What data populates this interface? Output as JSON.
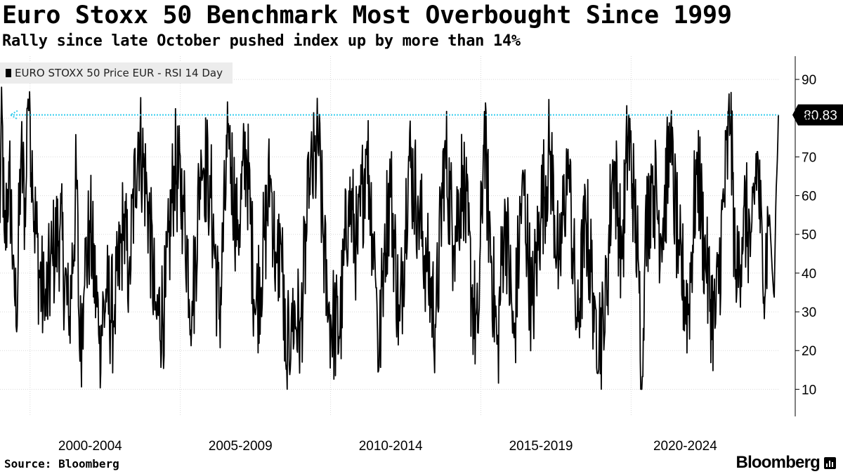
{
  "title": "Euro Stoxx 50 Benchmark Most Overbought Since 1999",
  "subtitle": "Rally since late October pushed index up by more than 14%",
  "legend": {
    "label": "EURO STOXX 50 Price EUR - RSI 14 Day"
  },
  "source": "Source: Bloomberg",
  "brand": "Bloomberg",
  "colors": {
    "line": "#000000",
    "reference": "#33ccee",
    "label_bg": "#000000",
    "grid": "#d9d9d9"
  },
  "chart_data": {
    "type": "line",
    "title": "Euro Stoxx 50 Benchmark Most Overbought Since 1999",
    "subtitle": "Rally since late October pushed index up by more than 14%",
    "xlabel": "",
    "ylabel": "",
    "x_range": [
      1999.0,
      2024.9
    ],
    "ylim": [
      3,
      96
    ],
    "y_ticks": [
      10,
      20,
      30,
      40,
      50,
      60,
      70,
      80,
      90
    ],
    "y_tick_labels": [
      "10",
      "20",
      "30",
      "40",
      "50",
      "60",
      "70",
      "80",
      "90"
    ],
    "x_tick_labels": [
      {
        "label": "2000-2004",
        "center": 2002.0
      },
      {
        "label": "2005-2009",
        "center": 2007.0
      },
      {
        "label": "2010-2014",
        "center": 2012.0
      },
      {
        "label": "2015-2019",
        "center": 2017.0
      },
      {
        "label": "2020-2024",
        "center": 2021.8
      }
    ],
    "x_boundaries": [
      2000,
      2005,
      2010,
      2015,
      2020
    ],
    "grid": true,
    "legend_position": "top-left",
    "series": [
      {
        "name": "EURO STOXX 50 Price EUR - RSI 14 Day",
        "last_value": 80.83,
        "last_value_label": "80.83",
        "anchors": [
          [
            1999.0,
            52
          ],
          [
            1999.05,
            88
          ],
          [
            1999.15,
            45
          ],
          [
            1999.3,
            68
          ],
          [
            1999.45,
            42
          ],
          [
            1999.55,
            26
          ],
          [
            1999.7,
            72
          ],
          [
            1999.85,
            54
          ],
          [
            1999.92,
            86
          ],
          [
            1999.99,
            84
          ],
          [
            2000.1,
            60
          ],
          [
            2000.3,
            40
          ],
          [
            2000.5,
            30
          ],
          [
            2000.75,
            44
          ],
          [
            2001.0,
            52
          ],
          [
            2001.3,
            26
          ],
          [
            2001.55,
            65
          ],
          [
            2001.65,
            18
          ],
          [
            2001.8,
            38
          ],
          [
            2002.0,
            52
          ],
          [
            2002.3,
            24
          ],
          [
            2002.55,
            34
          ],
          [
            2002.8,
            28
          ],
          [
            2003.1,
            52
          ],
          [
            2003.3,
            40
          ],
          [
            2003.6,
            77
          ],
          [
            2003.9,
            60
          ],
          [
            2004.2,
            28
          ],
          [
            2004.5,
            32
          ],
          [
            2004.8,
            68
          ],
          [
            2005.1,
            58
          ],
          [
            2005.4,
            30
          ],
          [
            2005.7,
            72
          ],
          [
            2006.0,
            62
          ],
          [
            2006.3,
            28
          ],
          [
            2006.6,
            76
          ],
          [
            2006.9,
            50
          ],
          [
            2007.2,
            72
          ],
          [
            2007.5,
            30
          ],
          [
            2007.8,
            48
          ],
          [
            2008.0,
            66
          ],
          [
            2008.2,
            40
          ],
          [
            2008.35,
            50
          ],
          [
            2008.52,
            13
          ],
          [
            2008.7,
            30
          ],
          [
            2009.0,
            26
          ],
          [
            2009.3,
            62
          ],
          [
            2009.6,
            72
          ],
          [
            2009.9,
            30
          ],
          [
            2010.3,
            24
          ],
          [
            2010.6,
            60
          ],
          [
            2010.9,
            45
          ],
          [
            2011.2,
            74
          ],
          [
            2011.5,
            40
          ],
          [
            2011.6,
            15
          ],
          [
            2011.8,
            50
          ],
          [
            2012.0,
            62
          ],
          [
            2012.3,
            26
          ],
          [
            2012.6,
            70
          ],
          [
            2012.9,
            58
          ],
          [
            2013.2,
            42
          ],
          [
            2013.5,
            27
          ],
          [
            2013.8,
            73
          ],
          [
            2014.1,
            48
          ],
          [
            2014.4,
            66
          ],
          [
            2014.7,
            35
          ],
          [
            2014.9,
            22
          ],
          [
            2015.1,
            76
          ],
          [
            2015.35,
            44
          ],
          [
            2015.55,
            20
          ],
          [
            2015.8,
            58
          ],
          [
            2016.1,
            22
          ],
          [
            2016.4,
            66
          ],
          [
            2016.7,
            30
          ],
          [
            2017.0,
            56
          ],
          [
            2017.3,
            72
          ],
          [
            2017.6,
            40
          ],
          [
            2017.9,
            70
          ],
          [
            2018.2,
            26
          ],
          [
            2018.5,
            54
          ],
          [
            2018.8,
            30
          ],
          [
            2019.1,
            23
          ],
          [
            2019.4,
            70
          ],
          [
            2019.7,
            45
          ],
          [
            2019.9,
            76
          ],
          [
            2020.1,
            60
          ],
          [
            2020.25,
            40
          ],
          [
            2020.38,
            10
          ],
          [
            2020.45,
            46
          ],
          [
            2020.7,
            66
          ],
          [
            2021.0,
            50
          ],
          [
            2021.3,
            72
          ],
          [
            2021.6,
            44
          ],
          [
            2021.9,
            30
          ],
          [
            2022.2,
            70
          ],
          [
            2022.5,
            40
          ],
          [
            2022.8,
            26
          ],
          [
            2023.1,
            60
          ],
          [
            2023.3,
            80
          ],
          [
            2023.5,
            35
          ],
          [
            2023.75,
            56
          ],
          [
            2024.0,
            48
          ],
          [
            2024.2,
            72
          ],
          [
            2024.4,
            35
          ],
          [
            2024.6,
            56
          ],
          [
            2024.7,
            40
          ],
          [
            2024.76,
            33
          ],
          [
            2024.82,
            60
          ],
          [
            2024.87,
            70
          ],
          [
            2024.9,
            80.83
          ]
        ]
      }
    ],
    "reference_line": {
      "value": 80.83,
      "x_start": 1999.35,
      "x_end": 2024.9,
      "style": "dotted-arrow"
    }
  }
}
